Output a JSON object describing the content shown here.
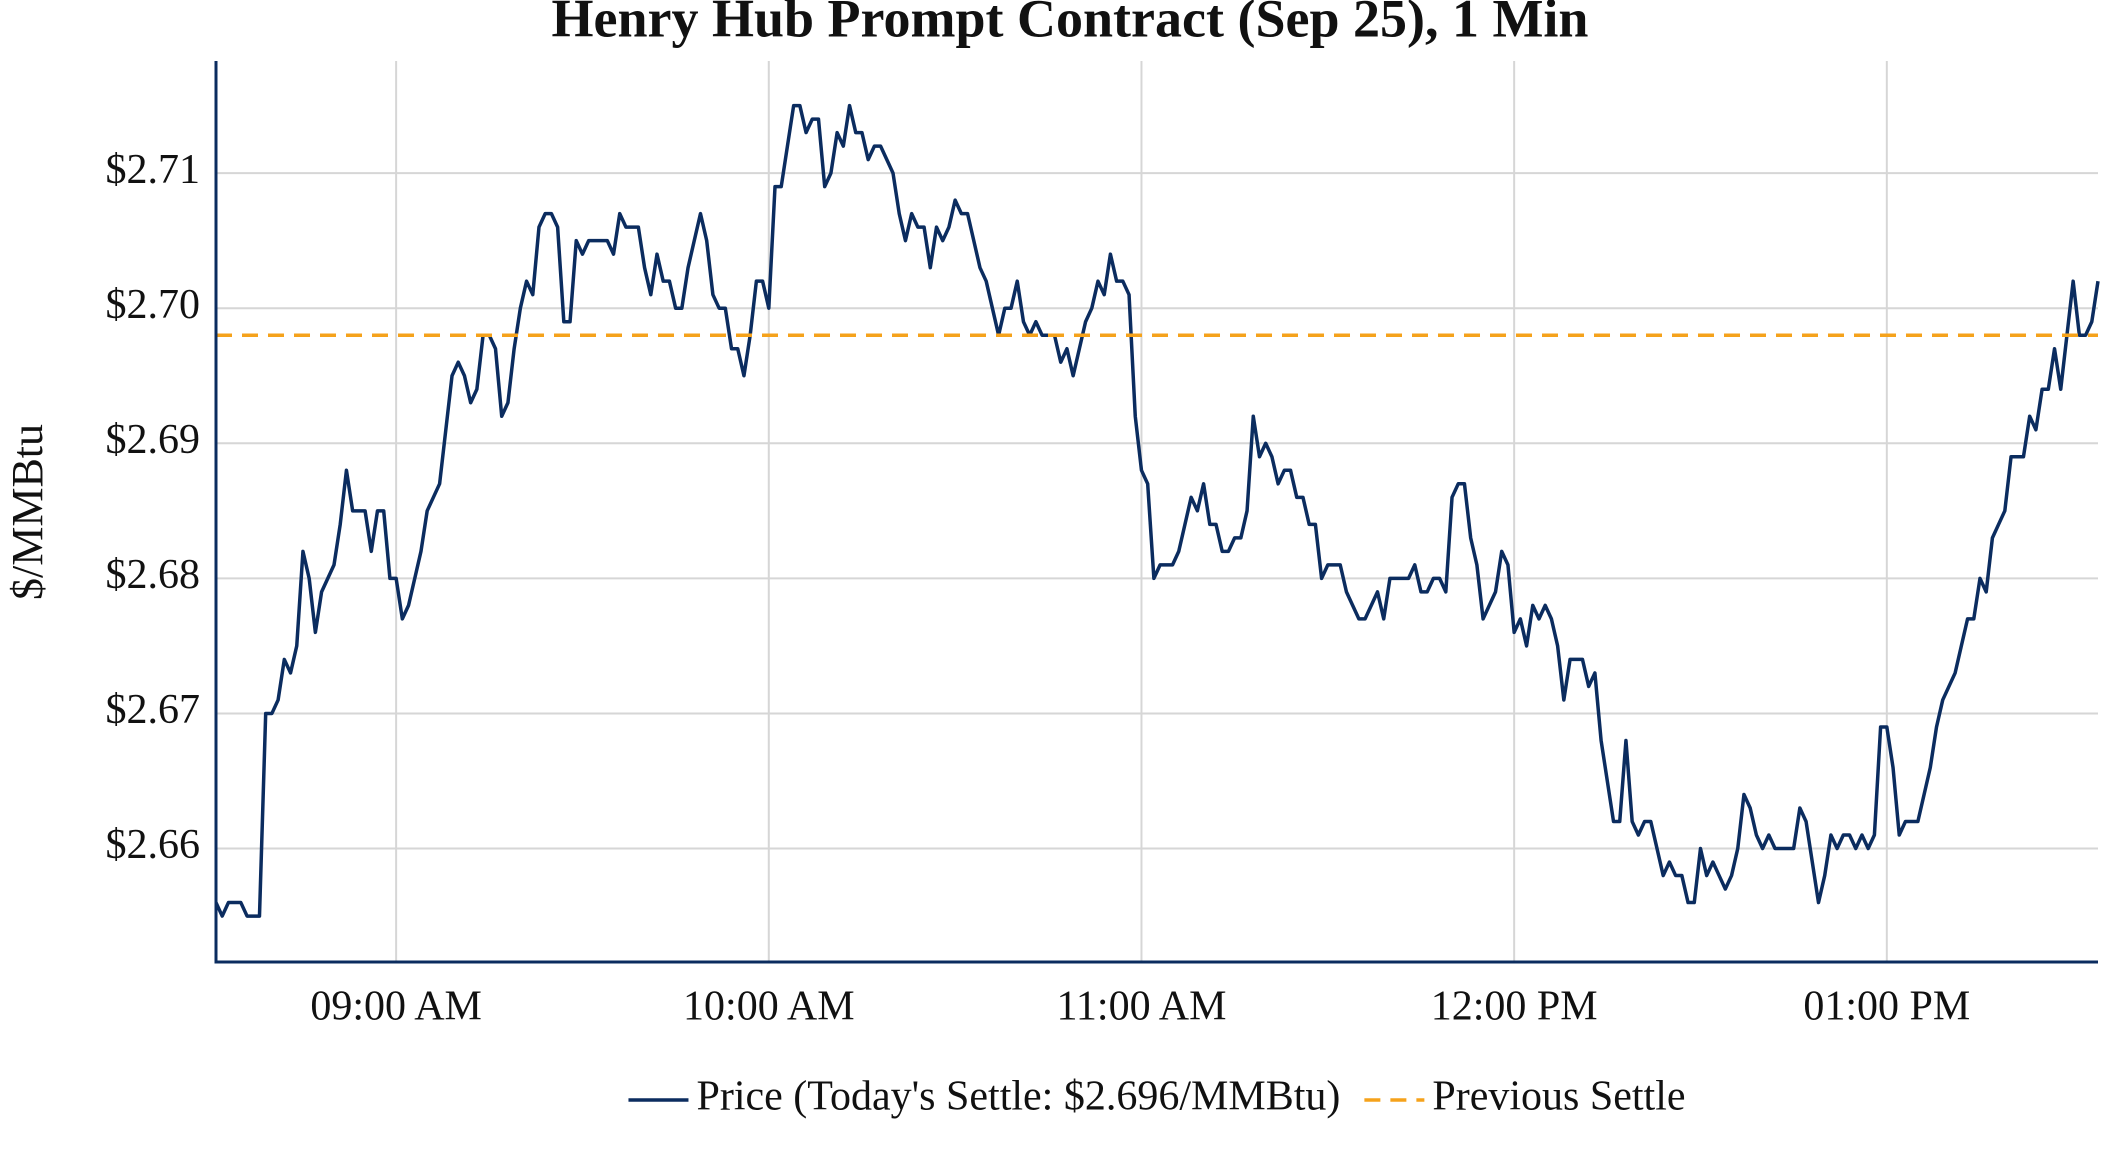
{
  "chart_data": {
    "type": "line",
    "title": "Henry Hub Prompt Contract (Sep 25), 1 Min",
    "ylabel": "$/MMBtu",
    "x": [
      "08:31",
      "08:32",
      "08:33",
      "08:34",
      "08:35",
      "08:36",
      "08:37",
      "08:38",
      "08:39",
      "08:40",
      "08:41",
      "08:42",
      "08:43",
      "08:44",
      "08:45",
      "08:46",
      "08:47",
      "08:48",
      "08:49",
      "08:50",
      "08:51",
      "08:52",
      "08:53",
      "08:54",
      "08:55",
      "08:56",
      "08:57",
      "08:58",
      "08:59",
      "09:00",
      "09:01",
      "09:02",
      "09:03",
      "09:04",
      "09:05",
      "09:06",
      "09:07",
      "09:08",
      "09:09",
      "09:10",
      "09:11",
      "09:12",
      "09:13",
      "09:14",
      "09:15",
      "09:16",
      "09:17",
      "09:18",
      "09:19",
      "09:20",
      "09:21",
      "09:22",
      "09:23",
      "09:24",
      "09:25",
      "09:26",
      "09:27",
      "09:28",
      "09:29",
      "09:30",
      "09:31",
      "09:32",
      "09:33",
      "09:34",
      "09:35",
      "09:36",
      "09:37",
      "09:38",
      "09:39",
      "09:40",
      "09:41",
      "09:42",
      "09:43",
      "09:44",
      "09:45",
      "09:46",
      "09:47",
      "09:48",
      "09:49",
      "09:50",
      "09:51",
      "09:52",
      "09:53",
      "09:54",
      "09:55",
      "09:56",
      "09:57",
      "09:58",
      "09:59",
      "10:00",
      "10:01",
      "10:02",
      "10:03",
      "10:04",
      "10:05",
      "10:06",
      "10:07",
      "10:08",
      "10:09",
      "10:10",
      "10:11",
      "10:12",
      "10:13",
      "10:14",
      "10:15",
      "10:16",
      "10:17",
      "10:18",
      "10:19",
      "10:20",
      "10:21",
      "10:22",
      "10:23",
      "10:24",
      "10:25",
      "10:26",
      "10:27",
      "10:28",
      "10:29",
      "10:30",
      "10:31",
      "10:32",
      "10:33",
      "10:34",
      "10:35",
      "10:36",
      "10:37",
      "10:38",
      "10:39",
      "10:40",
      "10:41",
      "10:42",
      "10:43",
      "10:44",
      "10:45",
      "10:46",
      "10:47",
      "10:48",
      "10:49",
      "10:50",
      "10:51",
      "10:52",
      "10:53",
      "10:54",
      "10:55",
      "10:56",
      "10:57",
      "10:58",
      "10:59",
      "11:00",
      "11:01",
      "11:02",
      "11:03",
      "11:04",
      "11:05",
      "11:06",
      "11:07",
      "11:08",
      "11:09",
      "11:10",
      "11:11",
      "11:12",
      "11:13",
      "11:14",
      "11:15",
      "11:16",
      "11:17",
      "11:18",
      "11:19",
      "11:20",
      "11:21",
      "11:22",
      "11:23",
      "11:24",
      "11:25",
      "11:26",
      "11:27",
      "11:28",
      "11:29",
      "11:30",
      "11:31",
      "11:32",
      "11:33",
      "11:34",
      "11:35",
      "11:36",
      "11:37",
      "11:38",
      "11:39",
      "11:40",
      "11:41",
      "11:42",
      "11:43",
      "11:44",
      "11:45",
      "11:46",
      "11:47",
      "11:48",
      "11:49",
      "11:50",
      "11:51",
      "11:52",
      "11:53",
      "11:54",
      "11:55",
      "11:56",
      "11:57",
      "11:58",
      "11:59",
      "12:00",
      "12:01",
      "12:02",
      "12:03",
      "12:04",
      "12:05",
      "12:06",
      "12:07",
      "12:08",
      "12:09",
      "12:10",
      "12:11",
      "12:12",
      "12:13",
      "12:14",
      "12:15",
      "12:16",
      "12:17",
      "12:18",
      "12:19",
      "12:20",
      "12:21",
      "12:22",
      "12:23",
      "12:24",
      "12:25",
      "12:26",
      "12:27",
      "12:28",
      "12:29",
      "12:30",
      "12:31",
      "12:32",
      "12:33",
      "12:34",
      "12:35",
      "12:36",
      "12:37",
      "12:38",
      "12:39",
      "12:40",
      "12:41",
      "12:42",
      "12:43",
      "12:44",
      "12:45",
      "12:46",
      "12:47",
      "12:48",
      "12:49",
      "12:50",
      "12:51",
      "12:52",
      "12:53",
      "12:54",
      "12:55",
      "12:56",
      "12:57",
      "12:58",
      "12:59",
      "13:00",
      "13:01",
      "13:02",
      "13:03",
      "13:04",
      "13:05",
      "13:06",
      "13:07",
      "13:08",
      "13:09",
      "13:10",
      "13:11",
      "13:12",
      "13:13",
      "13:14",
      "13:15",
      "13:16",
      "13:17",
      "13:18",
      "13:19",
      "13:20",
      "13:21",
      "13:22",
      "13:23",
      "13:24",
      "13:25",
      "13:26",
      "13:27",
      "13:28",
      "13:29",
      "13:30",
      "13:31",
      "13:32",
      "13:33",
      "13:34"
    ],
    "series": [
      {
        "name": "Price (Today's Settle: $2.696/MMBtu)",
        "color": "#0b2c5f",
        "values": [
          2.656,
          2.655,
          2.656,
          2.656,
          2.656,
          2.655,
          2.655,
          2.655,
          2.67,
          2.67,
          2.671,
          2.674,
          2.673,
          2.675,
          2.682,
          2.68,
          2.676,
          2.679,
          2.68,
          2.681,
          2.684,
          2.688,
          2.685,
          2.685,
          2.685,
          2.682,
          2.685,
          2.685,
          2.68,
          2.68,
          2.677,
          2.678,
          2.68,
          2.682,
          2.685,
          2.686,
          2.687,
          2.691,
          2.695,
          2.696,
          2.695,
          2.693,
          2.694,
          2.698,
          2.698,
          2.697,
          2.692,
          2.693,
          2.697,
          2.7,
          2.702,
          2.701,
          2.706,
          2.707,
          2.707,
          2.706,
          2.699,
          2.699,
          2.705,
          2.704,
          2.705,
          2.705,
          2.705,
          2.705,
          2.704,
          2.707,
          2.706,
          2.706,
          2.706,
          2.703,
          2.701,
          2.704,
          2.702,
          2.702,
          2.7,
          2.7,
          2.703,
          2.705,
          2.707,
          2.705,
          2.701,
          2.7,
          2.7,
          2.697,
          2.697,
          2.695,
          2.698,
          2.702,
          2.702,
          2.7,
          2.709,
          2.709,
          2.712,
          2.715,
          2.715,
          2.713,
          2.714,
          2.714,
          2.709,
          2.71,
          2.713,
          2.712,
          2.715,
          2.713,
          2.713,
          2.711,
          2.712,
          2.712,
          2.711,
          2.71,
          2.707,
          2.705,
          2.707,
          2.706,
          2.706,
          2.703,
          2.706,
          2.705,
          2.706,
          2.708,
          2.707,
          2.707,
          2.705,
          2.703,
          2.702,
          2.7,
          2.698,
          2.7,
          2.7,
          2.702,
          2.699,
          2.698,
          2.699,
          2.698,
          2.698,
          2.698,
          2.696,
          2.697,
          2.695,
          2.697,
          2.699,
          2.7,
          2.702,
          2.701,
          2.704,
          2.702,
          2.702,
          2.701,
          2.692,
          2.688,
          2.687,
          2.68,
          2.681,
          2.681,
          2.681,
          2.682,
          2.684,
          2.686,
          2.685,
          2.687,
          2.684,
          2.684,
          2.682,
          2.682,
          2.683,
          2.683,
          2.685,
          2.692,
          2.689,
          2.69,
          2.689,
          2.687,
          2.688,
          2.688,
          2.686,
          2.686,
          2.684,
          2.684,
          2.68,
          2.681,
          2.681,
          2.681,
          2.679,
          2.678,
          2.677,
          2.677,
          2.678,
          2.679,
          2.677,
          2.68,
          2.68,
          2.68,
          2.68,
          2.681,
          2.679,
          2.679,
          2.68,
          2.68,
          2.679,
          2.686,
          2.687,
          2.687,
          2.683,
          2.681,
          2.677,
          2.678,
          2.679,
          2.682,
          2.681,
          2.676,
          2.677,
          2.675,
          2.678,
          2.677,
          2.678,
          2.677,
          2.675,
          2.671,
          2.674,
          2.674,
          2.674,
          2.672,
          2.673,
          2.668,
          2.665,
          2.662,
          2.662,
          2.668,
          2.662,
          2.661,
          2.662,
          2.662,
          2.66,
          2.658,
          2.659,
          2.658,
          2.658,
          2.656,
          2.656,
          2.66,
          2.658,
          2.659,
          2.658,
          2.657,
          2.658,
          2.66,
          2.664,
          2.663,
          2.661,
          2.66,
          2.661,
          2.66,
          2.66,
          2.66,
          2.66,
          2.663,
          2.662,
          2.659,
          2.656,
          2.658,
          2.661,
          2.66,
          2.661,
          2.661,
          2.66,
          2.661,
          2.66,
          2.661,
          2.669,
          2.669,
          2.666,
          2.661,
          2.662,
          2.662,
          2.662,
          2.664,
          2.666,
          2.669,
          2.671,
          2.672,
          2.673,
          2.675,
          2.677,
          2.677,
          2.68,
          2.679,
          2.683,
          2.684,
          2.685,
          2.689,
          2.689,
          2.689,
          2.692,
          2.691,
          2.694,
          2.694,
          2.697,
          2.694,
          2.698,
          2.702,
          2.698,
          2.698,
          2.699,
          2.702
        ]
      },
      {
        "name": "Previous Settle",
        "color": "#f5a21b",
        "value": 2.698,
        "dashed": true
      }
    ],
    "xlim": [
      "08:31",
      "13:34"
    ],
    "xticks": [
      {
        "value": "09:00",
        "label": "09:00 AM"
      },
      {
        "value": "10:00",
        "label": "10:00 AM"
      },
      {
        "value": "11:00",
        "label": "11:00 AM"
      },
      {
        "value": "12:00",
        "label": "12:00 PM"
      },
      {
        "value": "13:00",
        "label": "01:00 PM"
      }
    ],
    "ylim": [
      2.6516,
      2.7183
    ],
    "yticks": [
      {
        "value": 2.66,
        "label": "$2.66"
      },
      {
        "value": 2.67,
        "label": "$2.67"
      },
      {
        "value": 2.68,
        "label": "$2.68"
      },
      {
        "value": 2.69,
        "label": "$2.69"
      },
      {
        "value": 2.7,
        "label": "$2.70"
      },
      {
        "value": 2.71,
        "label": "$2.71"
      }
    ],
    "grid": true,
    "legend": "bottom"
  }
}
